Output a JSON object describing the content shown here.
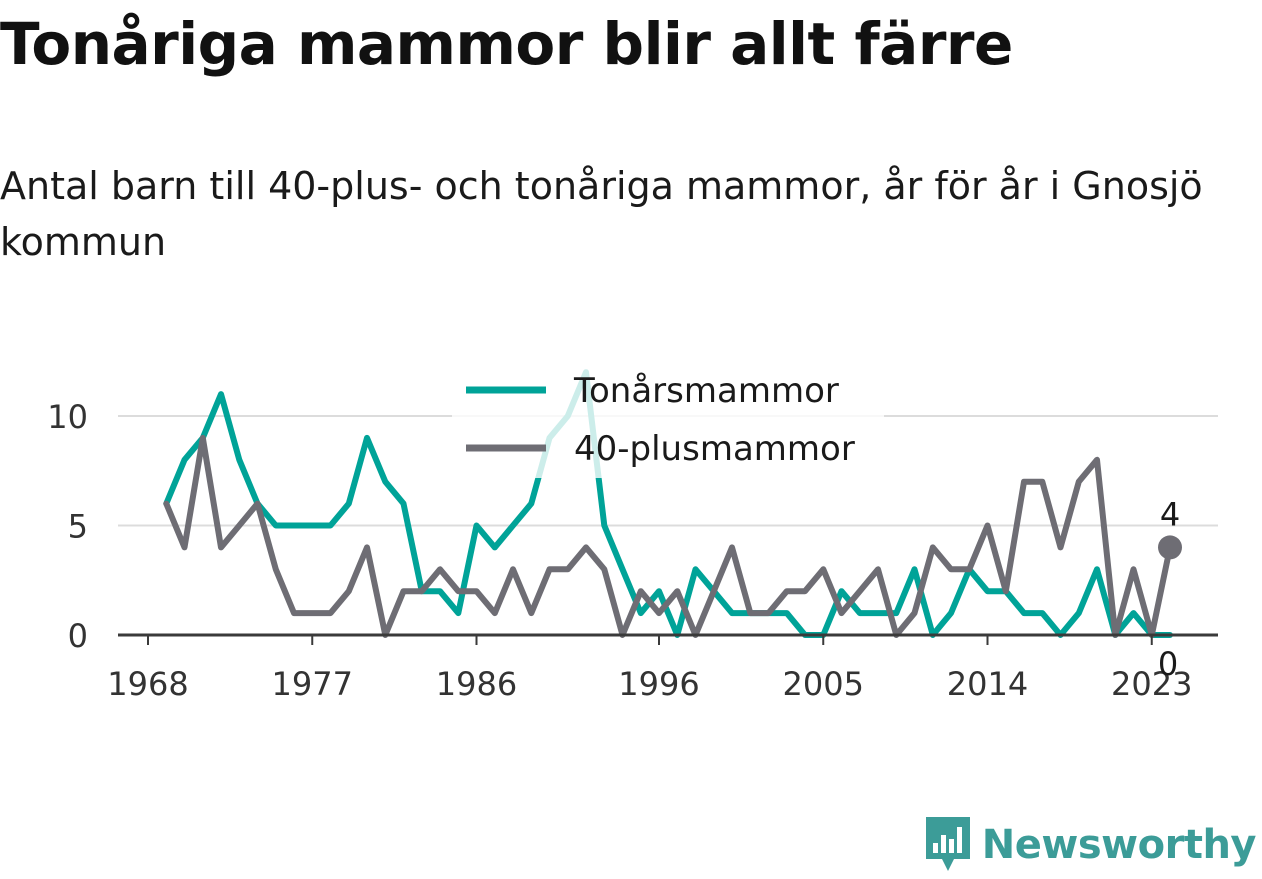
{
  "header": {
    "title": "Tonåriga mammor blir allt färre",
    "subtitle": "Antal barn till 40-plus- och tonåriga mammor, år för år i Gnosjö kommun"
  },
  "brand": {
    "name": "Newsworthy",
    "icon": "bar-chart-badge-icon",
    "color": "#3c9c98"
  },
  "chart_data": {
    "type": "line",
    "xlim": [
      1968,
      2024
    ],
    "ylim": [
      0,
      12
    ],
    "x_ticks": [
      1968,
      1977,
      1986,
      1996,
      2005,
      2014,
      2023
    ],
    "y_ticks": [
      0,
      5,
      10
    ],
    "grid": true,
    "legend": "top-center",
    "x": [
      1969,
      1970,
      1971,
      1972,
      1973,
      1974,
      1975,
      1976,
      1977,
      1978,
      1979,
      1980,
      1981,
      1982,
      1983,
      1984,
      1985,
      1986,
      1987,
      1988,
      1989,
      1990,
      1991,
      1992,
      1993,
      1994,
      1995,
      1996,
      1997,
      1998,
      1999,
      2000,
      2001,
      2002,
      2003,
      2004,
      2005,
      2006,
      2007,
      2008,
      2009,
      2010,
      2011,
      2012,
      2013,
      2014,
      2015,
      2016,
      2017,
      2018,
      2019,
      2020,
      2021,
      2022,
      2023,
      2024
    ],
    "series": [
      {
        "name": "Tonårsmammor",
        "color": "#00a398",
        "values": [
          6,
          8,
          9,
          11,
          8,
          6,
          5,
          5,
          5,
          5,
          6,
          9,
          7,
          6,
          2,
          2,
          1,
          5,
          4,
          5,
          6,
          9,
          10,
          12,
          5,
          3,
          1,
          2,
          0,
          3,
          2,
          1,
          1,
          1,
          1,
          0,
          0,
          2,
          1,
          1,
          1,
          3,
          0,
          1,
          3,
          2,
          2,
          1,
          1,
          0,
          1,
          3,
          0,
          1,
          0,
          0
        ],
        "end_label": "0"
      },
      {
        "name": "40-plusmammor",
        "color": "#6e6d74",
        "values": [
          6,
          4,
          9,
          4,
          5,
          6,
          3,
          1,
          1,
          1,
          2,
          4,
          0,
          2,
          2,
          3,
          2,
          2,
          1,
          3,
          1,
          3,
          3,
          4,
          3,
          0,
          2,
          1,
          2,
          0,
          2,
          4,
          1,
          1,
          2,
          2,
          3,
          1,
          2,
          3,
          0,
          1,
          4,
          3,
          3,
          5,
          2,
          7,
          7,
          4,
          7,
          8,
          0,
          3,
          0,
          4
        ],
        "end_label": "4"
      }
    ]
  }
}
